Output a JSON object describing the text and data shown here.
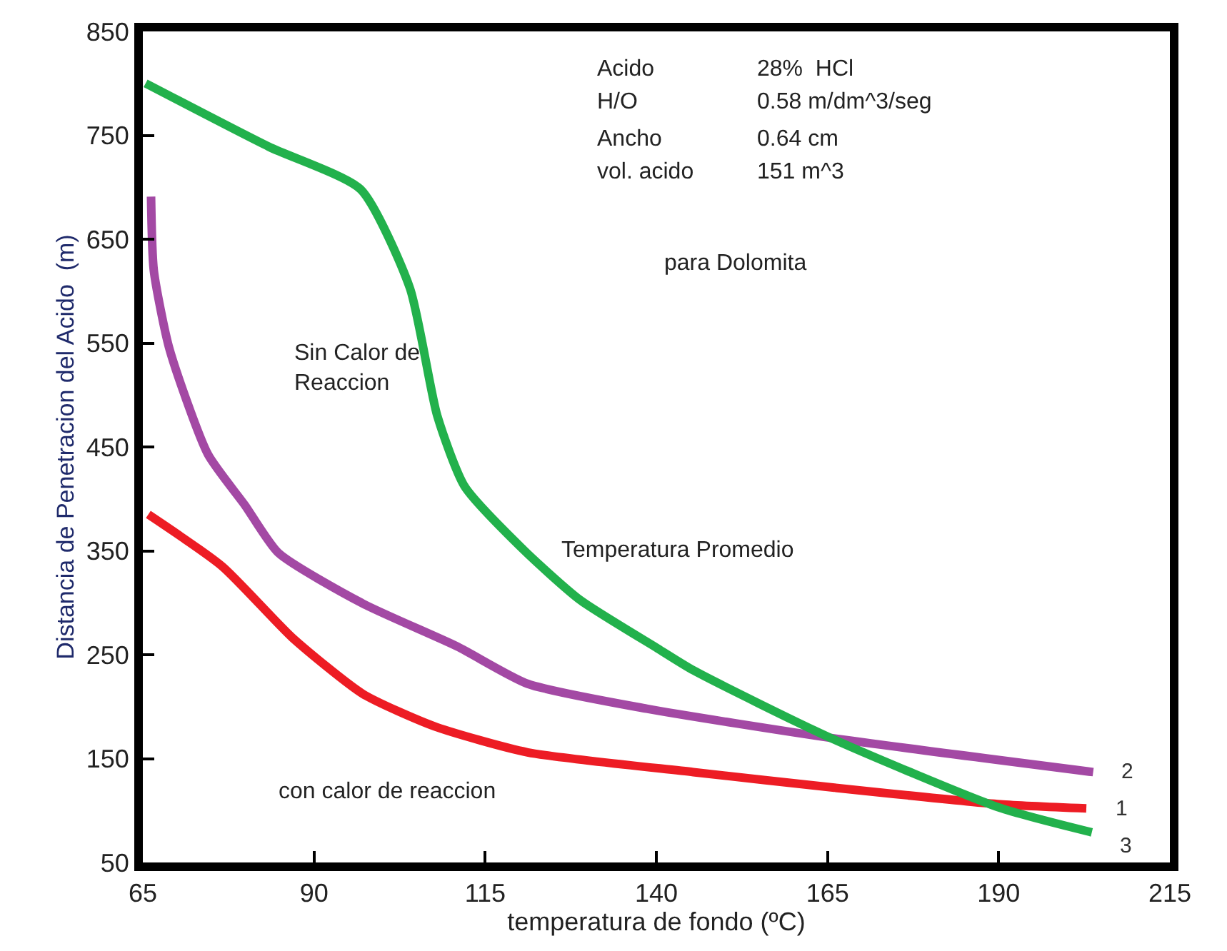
{
  "chart_data": {
    "type": "line",
    "xlabel": "temperatura de fondo (ºC)",
    "ylabel": "Distancia de Penetracion del Acido  (m)",
    "xlim": [
      65,
      215
    ],
    "xticks": [
      65,
      90,
      115,
      140,
      165,
      190,
      215
    ],
    "ylim": [
      50,
      850
    ],
    "yticks": [
      50,
      150,
      250,
      350,
      450,
      550,
      650,
      750,
      850
    ],
    "legend": false,
    "marker": "none",
    "line_style": "solid",
    "series": [
      {
        "name": "1",
        "color": "#ed1c24",
        "x": [
          65.8,
          76.6,
          86.9,
          97.2,
          107.6,
          121.2,
          145.4,
          166,
          190.2,
          202.8
        ],
        "values": [
          385,
          335,
          266,
          212,
          181,
          156,
          137,
          122,
          106,
          102
        ]
      },
      {
        "name": "2",
        "color": "#a349a4",
        "x": [
          66.2,
          66.6,
          68.9,
          74.5,
          79.9,
          84.8,
          97.2,
          110.9,
          121.2,
          138.6,
          165.4,
          203.8
        ],
        "values": [
          691,
          620,
          544,
          443,
          394,
          348,
          299,
          258,
          222,
          198,
          170,
          137
        ]
      },
      {
        "name": "3",
        "color": "#22b14c",
        "x": [
          65.4,
          83.4,
          96.8,
          104,
          108,
          112,
          120.6,
          128.8,
          140.2,
          145.4,
          165.4,
          190,
          203.6
        ],
        "values": [
          800,
          739,
          698,
          603,
          480,
          412,
          351,
          303,
          256,
          235,
          170,
          103,
          79
        ]
      }
    ],
    "annotations": [
      "Acido",
      "28%  HCl",
      "H/O",
      "0.58 m/dm^3/seg",
      "Ancho",
      "0.64 cm",
      "vol. acido",
      "151 m^3",
      "para Dolomita",
      "Sin Calor de\nReaccion",
      "Temperatura Promedio",
      "con calor de reaccion"
    ]
  }
}
